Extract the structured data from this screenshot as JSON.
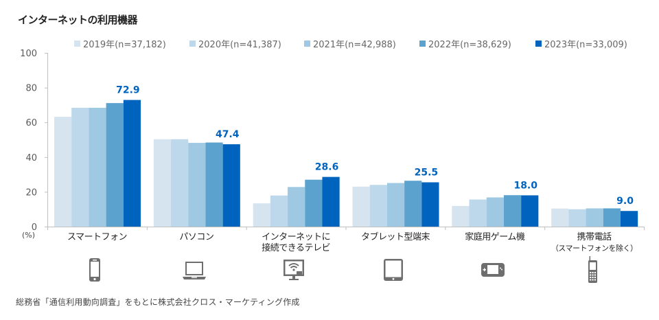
{
  "chart_data": {
    "type": "bar",
    "title": "インターネットの利用機器",
    "xlabel": "",
    "ylabel": "(%)",
    "ylim": [
      0,
      100
    ],
    "yticks": [
      0,
      20,
      40,
      60,
      80,
      100
    ],
    "grid": false,
    "legend_position": "top-right",
    "categories": [
      {
        "label": "スマートフォン",
        "sub": "",
        "icon": "smartphone-icon"
      },
      {
        "label": "パソコン",
        "sub": "",
        "icon": "laptop-icon"
      },
      {
        "label": "インターネットに",
        "label2": "接続できるテレビ",
        "sub": "",
        "icon": "smart-tv-icon"
      },
      {
        "label": "タブレット型端末",
        "sub": "",
        "icon": "tablet-icon"
      },
      {
        "label": "家庭用ゲーム機",
        "sub": "",
        "icon": "game-console-icon"
      },
      {
        "label": "携帯電話",
        "sub": "（スマートフォンを除く）",
        "icon": "feature-phone-icon"
      }
    ],
    "series": [
      {
        "name": "2019年(n=37,182)",
        "color": "#D6E4EF",
        "values": [
          63.2,
          50.3,
          13.4,
          23.0,
          11.9,
          10.4
        ]
      },
      {
        "name": "2020年(n=41,387)",
        "color": "#BDD7EB",
        "values": [
          68.4,
          50.3,
          17.9,
          24.0,
          15.6,
          10.0
        ]
      },
      {
        "name": "2021年(n=42,988)",
        "color": "#9FC8E2",
        "values": [
          68.4,
          48.2,
          22.8,
          25.1,
          16.8,
          10.5
        ]
      },
      {
        "name": "2022年(n=38,629)",
        "color": "#5BA3CE",
        "values": [
          71.1,
          48.4,
          27.0,
          26.4,
          18.1,
          10.5
        ]
      },
      {
        "name": "2023年(n=33,009)",
        "color": "#0063BE",
        "values": [
          72.9,
          47.4,
          28.6,
          25.5,
          18.0,
          9.0
        ]
      }
    ],
    "data_labels": {
      "series_index": 4,
      "labels": [
        "72.9",
        "47.4",
        "28.6",
        "25.5",
        "18.0",
        "9.0"
      ]
    }
  },
  "unit_label": "(%)",
  "source_note": "総務省「通信利用動向調査」をもとに株式会社クロス・マーケティング作成"
}
